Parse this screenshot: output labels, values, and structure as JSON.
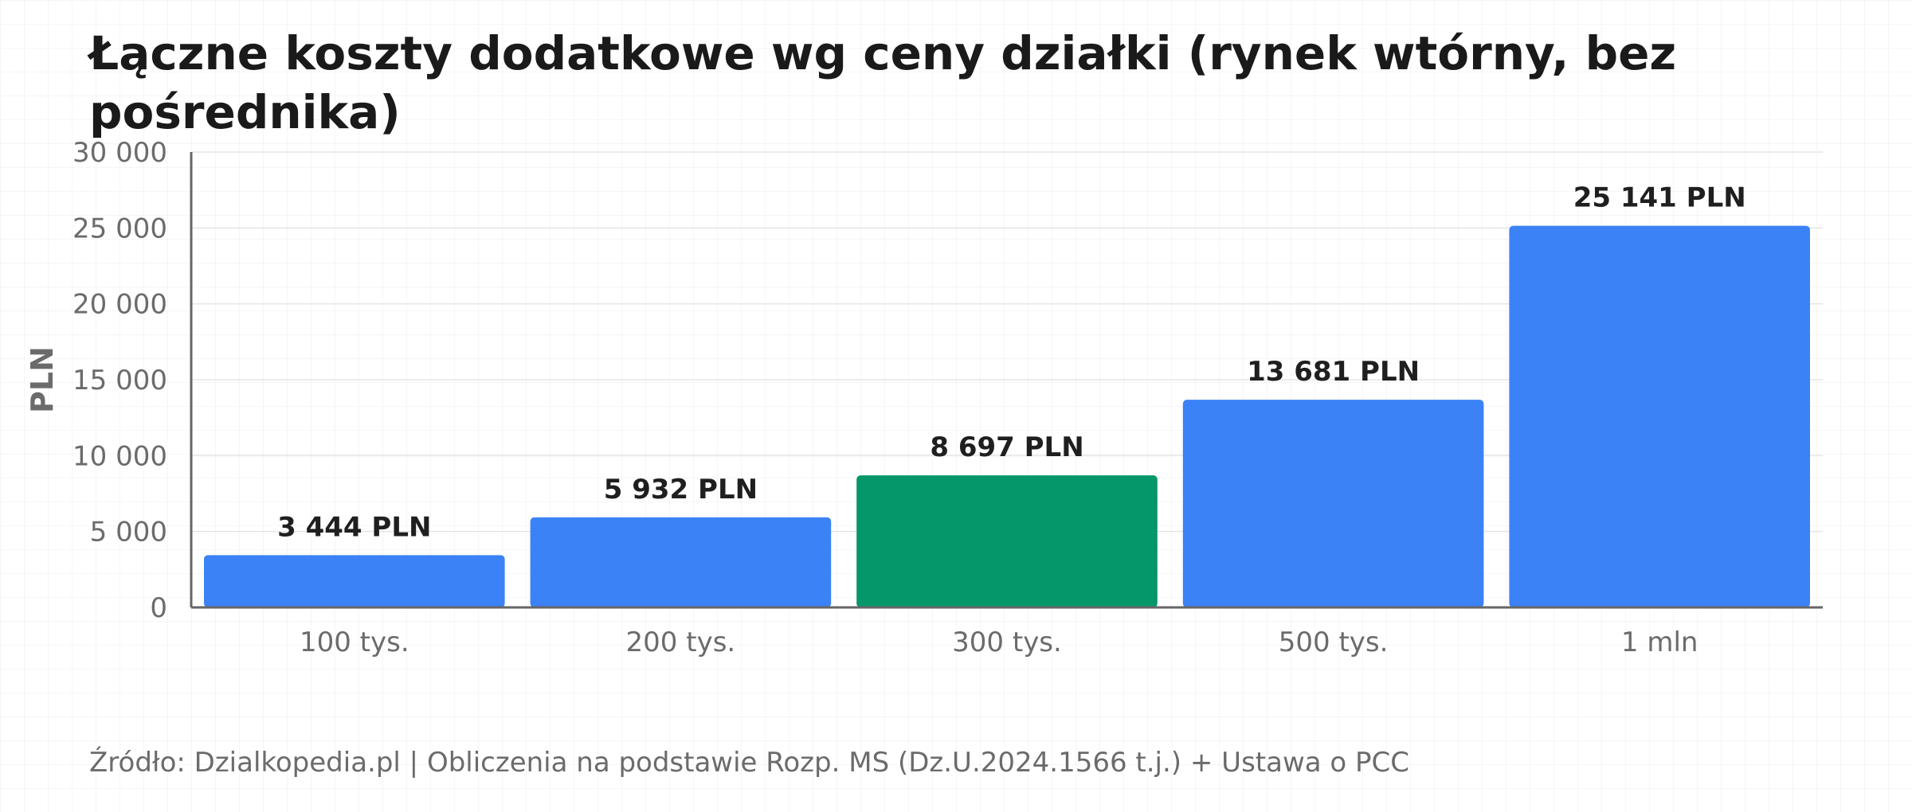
{
  "title": "Łączne koszty dodatkowe wg ceny działki (rynek wtórny, bez pośrednika)",
  "source": "Źródło: Dzialkopedia.pl | Obliczenia na podstawie Rozp. MS (Dz.U.2024.1566 t.j.) + Ustawa o PCC",
  "colors": {
    "default_bar": "#3b82f6",
    "highlight_bar": "#059669",
    "axis": "#666666",
    "grid": "#e5e5e5",
    "label": "#1f1f1f",
    "tick": "#6b6b6b"
  },
  "chart_data": {
    "type": "bar",
    "title": "Łączne koszty dodatkowe wg ceny działki (rynek wtórny, bez pośrednika)",
    "xlabel": "",
    "ylabel": "PLN",
    "categories": [
      "100 tys.",
      "200 tys.",
      "300 tys.",
      "500 tys.",
      "1 mln"
    ],
    "values": [
      3444,
      5932,
      8697,
      13681,
      25141
    ],
    "data_labels": [
      "3 444 PLN",
      "5 932 PLN",
      "8 697 PLN",
      "13 681 PLN",
      "25 141 PLN"
    ],
    "highlight_index": 2,
    "ylim": [
      0,
      30000
    ],
    "yticks": [
      0,
      5000,
      10000,
      15000,
      20000,
      25000,
      30000
    ],
    "ytick_labels": [
      "0",
      "5 000",
      "10 000",
      "15 000",
      "20 000",
      "25 000",
      "30 000"
    ],
    "grid": true,
    "legend": "none"
  }
}
